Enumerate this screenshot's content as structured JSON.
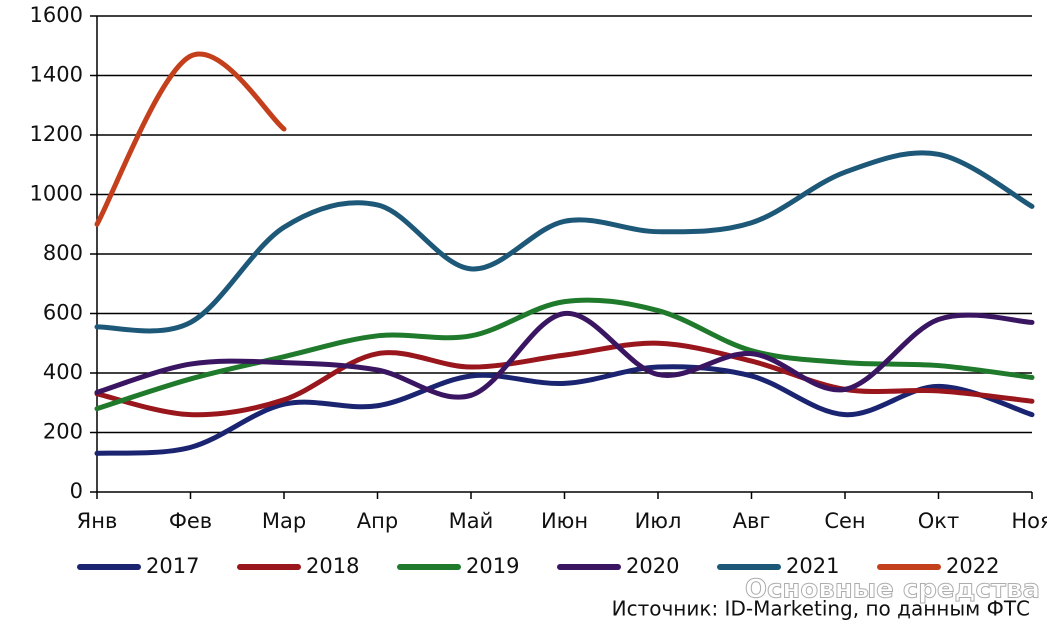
{
  "chart_data": {
    "type": "line",
    "categories": [
      "Янв",
      "Фев",
      "Мар",
      "Апр",
      "Май",
      "Июн",
      "Июл",
      "Авг",
      "Сен",
      "Окт",
      "Ноя"
    ],
    "series": [
      {
        "name": "2017",
        "color": "#1b2470",
        "values": [
          130,
          150,
          295,
          290,
          390,
          365,
          420,
          390,
          260,
          355,
          260
        ]
      },
      {
        "name": "2018",
        "color": "#98161c",
        "values": [
          330,
          260,
          310,
          465,
          420,
          460,
          500,
          440,
          345,
          340,
          305
        ]
      },
      {
        "name": "2019",
        "color": "#1f7a2c",
        "values": [
          280,
          380,
          455,
          525,
          525,
          640,
          610,
          475,
          435,
          425,
          385
        ]
      },
      {
        "name": "2020",
        "color": "#3a1562",
        "values": [
          335,
          430,
          435,
          410,
          325,
          600,
          395,
          465,
          345,
          580,
          570
        ]
      },
      {
        "name": "2021",
        "color": "#1d5878",
        "values": [
          555,
          570,
          890,
          965,
          750,
          910,
          875,
          905,
          1075,
          1135,
          960
        ]
      },
      {
        "name": "2022",
        "color": "#c4401c",
        "values": [
          900,
          1465,
          1220,
          null,
          null,
          null,
          null,
          null,
          null,
          null,
          null
        ]
      }
    ],
    "ylim": [
      0,
      1600
    ],
    "yticks": [
      0,
      200,
      400,
      600,
      800,
      1000,
      1200,
      1400,
      1600
    ],
    "grid": true,
    "source": "Источник: ID-Marketing, по данным ФТС",
    "watermark": "Основные средства"
  }
}
